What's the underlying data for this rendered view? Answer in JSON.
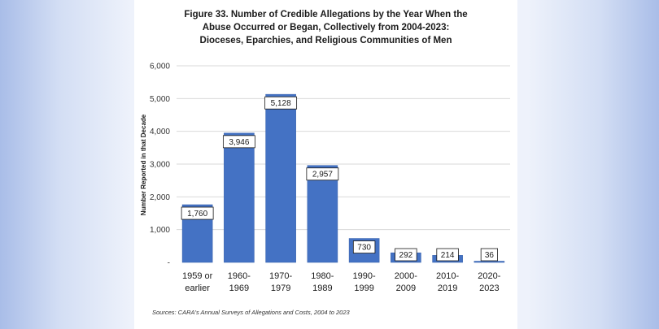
{
  "chart_data": {
    "type": "bar",
    "title_lines": [
      "Figure 33. Number of Credible Allegations by the Year When the",
      "Abuse Occurred or Began, Collectively from 2004-2023:",
      "Dioceses, Eparchies, and Religious Communities of Men"
    ],
    "ylabel": "Number Reported in that Decade",
    "xlabel": "",
    "categories": [
      [
        "1959 or",
        "earlier"
      ],
      [
        "1960-",
        "1969"
      ],
      [
        "1970-",
        "1979"
      ],
      [
        "1980-",
        "1989"
      ],
      [
        "1990-",
        "1999"
      ],
      [
        "2000-",
        "2009"
      ],
      [
        "2010-",
        "2019"
      ],
      [
        "2020-",
        "2023"
      ]
    ],
    "values": [
      1760,
      3946,
      5128,
      2957,
      730,
      292,
      214,
      36
    ],
    "data_labels": [
      "1,760",
      "3,946",
      "5,128",
      "2,957",
      "730",
      "292",
      "214",
      "36"
    ],
    "yticks": [
      0,
      1000,
      2000,
      3000,
      4000,
      5000,
      6000
    ],
    "ytick_labels": [
      "-",
      "1,000",
      "2,000",
      "3,000",
      "4,000",
      "5,000",
      "6,000"
    ],
    "ylim": [
      0,
      6000
    ],
    "grid": true,
    "bar_color": "#4472c4",
    "source_prefix": "Sources: CARA's ",
    "source_italic": "Annual Surveys of Allegations and Costs, 2004 to 2023"
  }
}
